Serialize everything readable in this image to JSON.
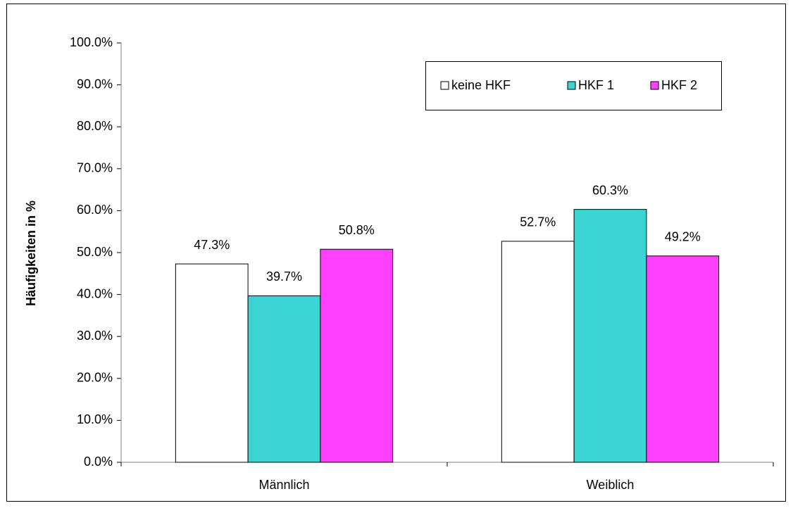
{
  "chart_data": {
    "type": "bar",
    "y_label": "Häufigkeiten in %",
    "categories": [
      "Männlich",
      "Weiblich"
    ],
    "series": [
      {
        "name": "keine HKF",
        "color": "#ffffff",
        "values": [
          47.3,
          52.7
        ],
        "value_labels": [
          "47.3%",
          "52.7%"
        ]
      },
      {
        "name": "HKF 1",
        "color": "#3ad4d4",
        "values": [
          39.7,
          60.3
        ],
        "value_labels": [
          "39.7%",
          "60.3%"
        ]
      },
      {
        "name": "HKF 2",
        "color": "#ff40ff",
        "values": [
          50.8,
          49.2
        ],
        "value_labels": [
          "50.8%",
          "49.2%"
        ]
      }
    ],
    "ylim": [
      0,
      100
    ],
    "yticks": [
      {
        "value": 0,
        "label": "0.0%"
      },
      {
        "value": 10,
        "label": "10.0%"
      },
      {
        "value": 20,
        "label": "20.0%"
      },
      {
        "value": 30,
        "label": "30.0%"
      },
      {
        "value": 40,
        "label": "40.0%"
      },
      {
        "value": 50,
        "label": "50.0%"
      },
      {
        "value": 60,
        "label": "60.0%"
      },
      {
        "value": 70,
        "label": "70.0%"
      },
      {
        "value": 80,
        "label": "80.0%"
      },
      {
        "value": 90,
        "label": "90.0%"
      },
      {
        "value": 100,
        "label": "100.0%"
      }
    ]
  }
}
